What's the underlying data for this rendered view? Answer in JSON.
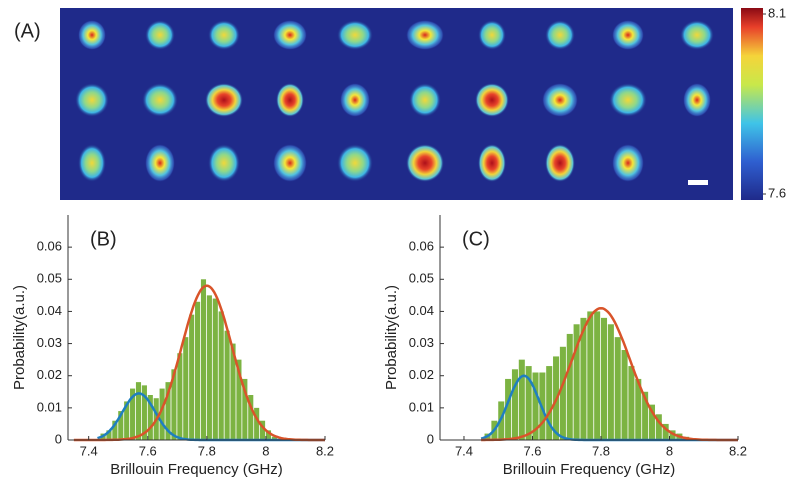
{
  "chart_data": [
    {
      "type": "image",
      "label": "(A)",
      "colorbar": {
        "lim": [
          7.6,
          8.1
        ],
        "ticks": [
          7.6,
          8.1
        ]
      }
    },
    {
      "type": "histogram",
      "label": "(B)",
      "xlabel": "Brillouin Frequency (GHz)",
      "ylabel": "Probability(a.u.)",
      "color": "#7cb342",
      "bins": [
        7.44,
        7.46,
        7.48,
        7.5,
        7.52,
        7.54,
        7.56,
        7.58,
        7.6,
        7.62,
        7.64,
        7.66,
        7.68,
        7.7,
        7.72,
        7.74,
        7.76,
        7.78,
        7.8,
        7.82,
        7.84,
        7.86,
        7.88,
        7.9,
        7.92,
        7.94,
        7.96,
        7.98,
        8,
        8.02,
        8.04
      ],
      "values": [
        0.002,
        0.003,
        0.006,
        0.009,
        0.012,
        0.016,
        0.018,
        0.017,
        0.014,
        0.013,
        0.016,
        0.018,
        0.022,
        0.027,
        0.032,
        0.039,
        0.043,
        0.05,
        0.045,
        0.044,
        0.04,
        0.034,
        0.03,
        0.025,
        0.019,
        0.014,
        0.01,
        0.006,
        0.003,
        0.001
      ],
      "fits": [
        {
          "color": "#1f7fc0",
          "center": 7.57,
          "width": 0.055,
          "peak": 0.0145,
          "range": [
            7.43,
            8.2
          ]
        },
        {
          "color": "#d9542a",
          "center": 7.8,
          "width": 0.085,
          "peak": 0.048,
          "range": [
            7.35,
            8.2
          ]
        }
      ],
      "xlim": [
        7.33,
        8.2
      ],
      "xticks": [
        7.4,
        7.6,
        7.8,
        8,
        8.2
      ],
      "ylim": [
        0,
        0.07
      ],
      "yticks": [
        0,
        0.01,
        0.02,
        0.03,
        0.04,
        0.05,
        0.06
      ]
    },
    {
      "type": "histogram",
      "label": "(C)",
      "xlabel": "Brillouin Frequency (GHz)",
      "ylabel": "Probability(a.u.)",
      "color": "#7cb342",
      "bins": [
        7.46,
        7.48,
        7.5,
        7.52,
        7.54,
        7.56,
        7.58,
        7.6,
        7.62,
        7.64,
        7.66,
        7.68,
        7.7,
        7.72,
        7.74,
        7.76,
        7.78,
        7.8,
        7.82,
        7.84,
        7.86,
        7.88,
        7.9,
        7.92,
        7.94,
        7.96,
        7.98,
        8,
        8.02,
        8.04,
        8.06
      ],
      "values": [
        0.002,
        0.006,
        0.012,
        0.019,
        0.022,
        0.025,
        0.023,
        0.021,
        0.021,
        0.023,
        0.026,
        0.029,
        0.033,
        0.036,
        0.038,
        0.04,
        0.04,
        0.038,
        0.036,
        0.032,
        0.028,
        0.023,
        0.019,
        0.015,
        0.011,
        0.008,
        0.005,
        0.003,
        0.002,
        0.001
      ],
      "fits": [
        {
          "color": "#1f7fc0",
          "center": 7.575,
          "width": 0.045,
          "peak": 0.02,
          "range": [
            7.45,
            8.2
          ]
        },
        {
          "color": "#d9542a",
          "center": 7.8,
          "width": 0.085,
          "peak": 0.041,
          "range": [
            7.45,
            8.2
          ]
        }
      ],
      "xlim": [
        7.33,
        8.2
      ],
      "xticks": [
        7.4,
        7.6,
        7.8,
        8,
        8.2
      ],
      "ylim": [
        0,
        0.07
      ],
      "yticks": [
        0,
        0.01,
        0.02,
        0.03,
        0.04,
        0.05,
        0.06
      ]
    }
  ]
}
